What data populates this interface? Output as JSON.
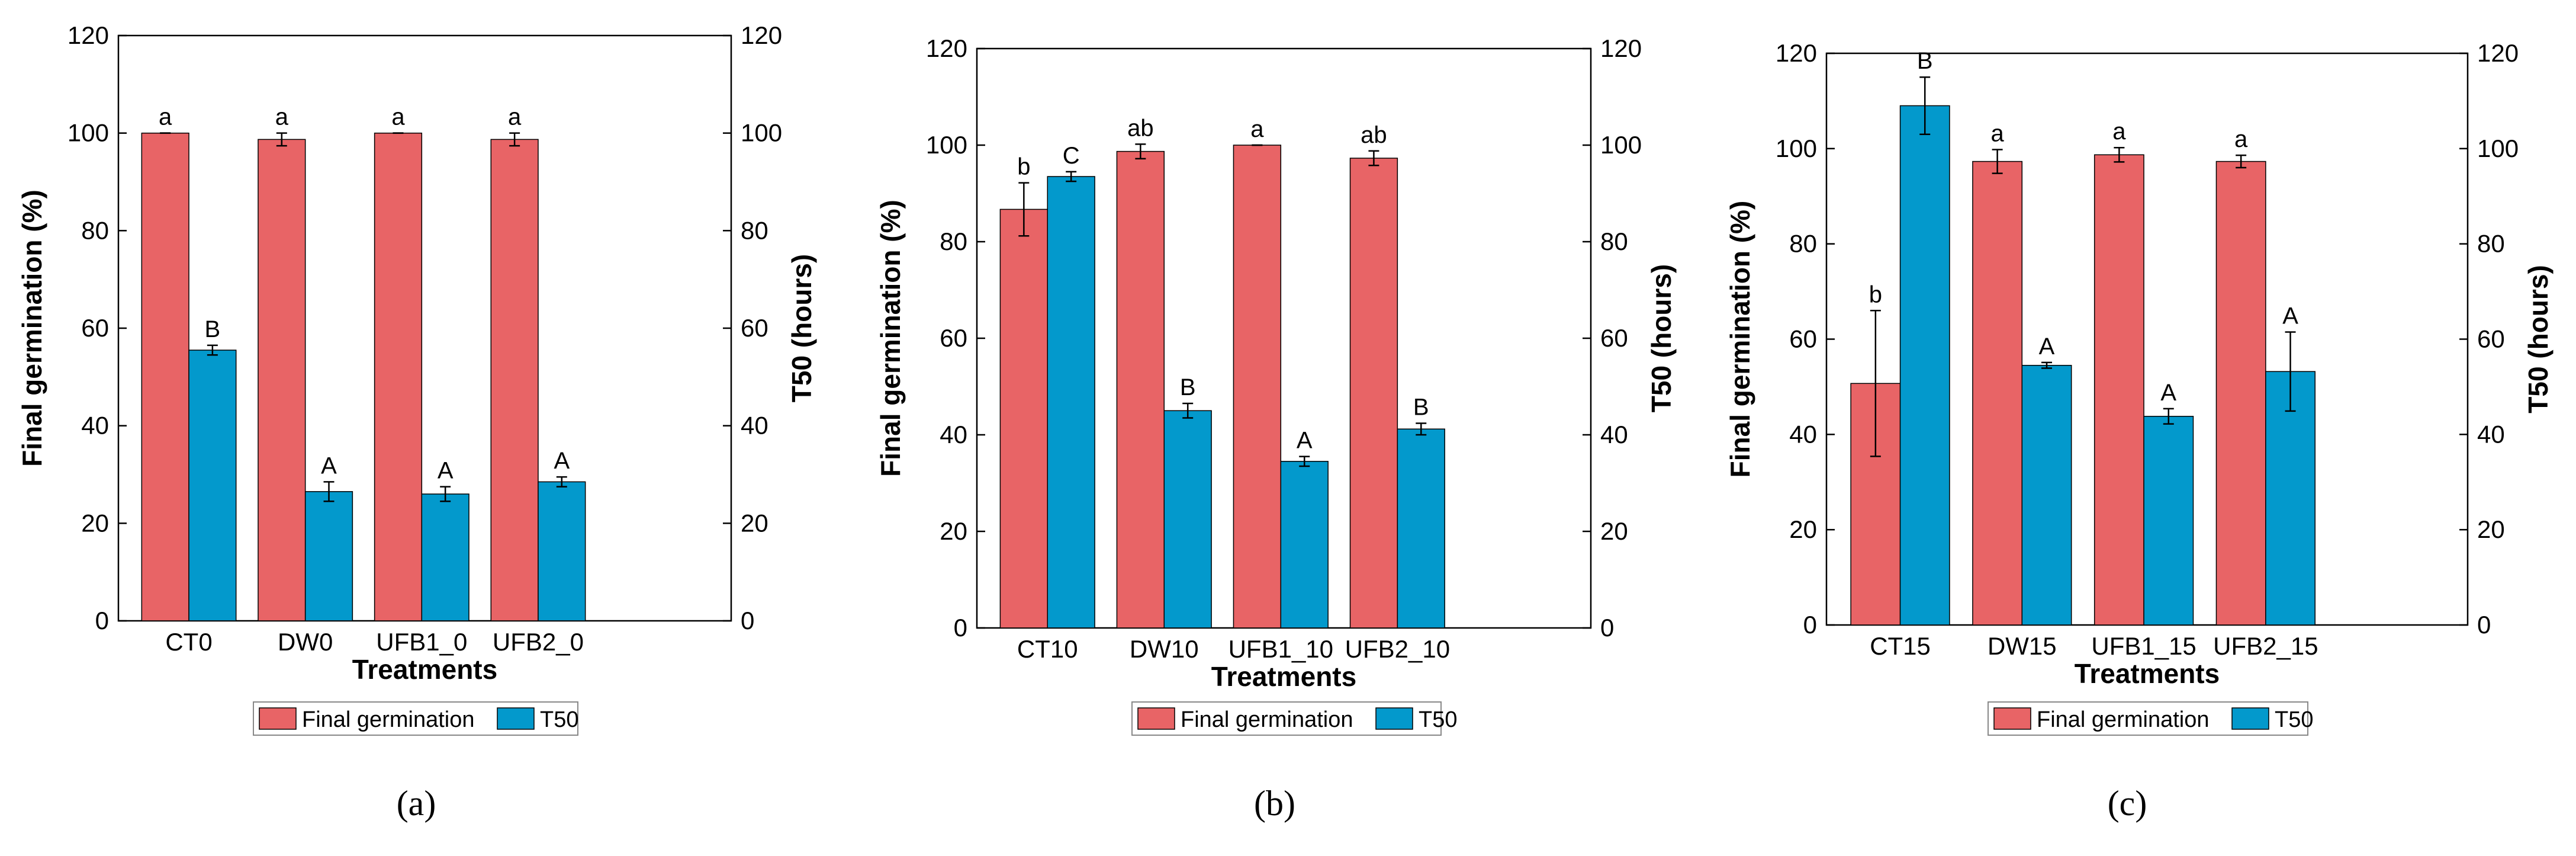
{
  "colors": {
    "final_germination": "#E86466",
    "t50": "#0399CC",
    "axis": "#000000",
    "legend_border": "#888888"
  },
  "chart_data": [
    {
      "type": "bar",
      "panel_label": "(a)",
      "categories": [
        "CT0",
        "DW0",
        "UFB1_0",
        "UFB2_0"
      ],
      "xlabel": "Treatments",
      "ylabel": "Final germination (%)",
      "ylabel_right": "T50 (hours)",
      "ylim": [
        0,
        120
      ],
      "ylim_right": [
        0,
        120
      ],
      "yticks": [
        "0",
        "20",
        "40",
        "60",
        "80",
        "100",
        "120"
      ],
      "yticks_right": [
        "0",
        "20",
        "40",
        "60",
        "80",
        "100",
        "120"
      ],
      "grid": false,
      "legend": "bottom",
      "series": [
        {
          "name": "Final germination",
          "axis": "left",
          "values": [
            100,
            98.7,
            100,
            98.7
          ],
          "errors": [
            0,
            1.3,
            0,
            1.3
          ],
          "letters": [
            "a",
            "a",
            "a",
            "a"
          ]
        },
        {
          "name": "T50",
          "axis": "right",
          "values": [
            55.5,
            26.5,
            26,
            28.5
          ],
          "errors": [
            1,
            2,
            1.5,
            1
          ],
          "letters": [
            "B",
            "A",
            "A",
            "A"
          ]
        }
      ]
    },
    {
      "type": "bar",
      "panel_label": "(b)",
      "categories": [
        "CT10",
        "DW10",
        "UFB1_10",
        "UFB2_10"
      ],
      "xlabel": "Treatments",
      "ylabel": "Final germination (%)",
      "ylabel_right": "T50 (hours)",
      "ylim": [
        0,
        120
      ],
      "ylim_right": [
        0,
        120
      ],
      "yticks": [
        "0",
        "20",
        "40",
        "60",
        "80",
        "100",
        "120"
      ],
      "yticks_right": [
        "0",
        "20",
        "40",
        "60",
        "80",
        "100",
        "120"
      ],
      "grid": false,
      "legend": "bottom",
      "series": [
        {
          "name": "Final germination",
          "axis": "left",
          "values": [
            86.7,
            98.7,
            100,
            97.3
          ],
          "errors": [
            5.5,
            1.5,
            0,
            1.5
          ],
          "letters": [
            "b",
            "ab",
            "a",
            "ab"
          ]
        },
        {
          "name": "T50",
          "axis": "right",
          "values": [
            93.5,
            45,
            34.5,
            41.2
          ],
          "errors": [
            1,
            1.5,
            1,
            1.2
          ],
          "letters": [
            "C",
            "B",
            "A",
            "B"
          ]
        }
      ]
    },
    {
      "type": "bar",
      "panel_label": "(c)",
      "categories": [
        "CT15",
        "DW15",
        "UFB1_15",
        "UFB2_15"
      ],
      "xlabel": "Treatments",
      "ylabel": "Final germination (%)",
      "ylabel_right": "T50 (hours)",
      "ylim": [
        0,
        120
      ],
      "ylim_right": [
        0,
        120
      ],
      "yticks": [
        "0",
        "20",
        "40",
        "60",
        "80",
        "100",
        "120"
      ],
      "yticks_right": [
        "0",
        "20",
        "40",
        "60",
        "80",
        "100",
        "120"
      ],
      "grid": false,
      "legend": "bottom",
      "series": [
        {
          "name": "Final germination",
          "axis": "left",
          "values": [
            50.7,
            97.3,
            98.7,
            97.3
          ],
          "errors": [
            15.3,
            2.5,
            1.5,
            1.3
          ],
          "letters": [
            "b",
            "a",
            "a",
            "a"
          ]
        },
        {
          "name": "T50",
          "axis": "right",
          "values": [
            109,
            54.5,
            43.8,
            53.2
          ],
          "errors": [
            6,
            0.6,
            1.6,
            8.3
          ],
          "letters": [
            "B",
            "A",
            "A",
            "A"
          ]
        }
      ]
    }
  ]
}
